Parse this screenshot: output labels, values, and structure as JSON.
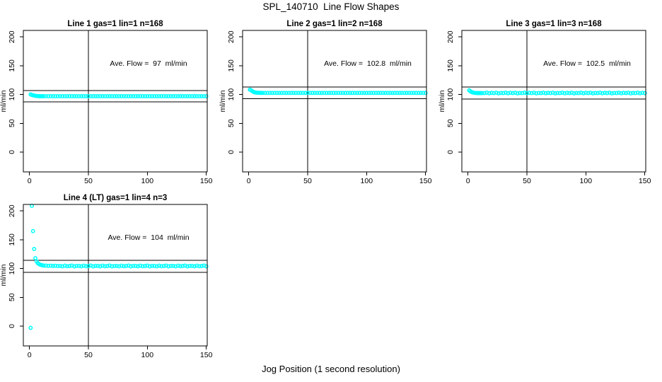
{
  "figure": {
    "title": "SPL_140710  Line Flow Shapes",
    "xlabel": "Jog Position (1 second resolution)",
    "background": "#ffffff",
    "axis_color": "#000000",
    "marker_color": "#00ffff"
  },
  "chart_data": [
    {
      "type": "scatter",
      "title": "Line 1 gas=1 lin=1 n=168",
      "ylabel": "ml/min",
      "annotation": "Ave. Flow =  97  ml/min",
      "annotation_xy": [
        101,
        150
      ],
      "ave_flow_ml_min": 97,
      "xlim": [
        -5.2,
        150.8
      ],
      "ylim": [
        -34.4,
        211.3
      ],
      "xticks": [
        0,
        50,
        100,
        150
      ],
      "yticks": [
        0,
        50,
        100,
        150,
        200
      ],
      "ref_lines_h": [
        106.7,
        87.3
      ],
      "ref_line_v": 50,
      "points": [
        [
          1,
          100.3
        ],
        [
          2,
          99.3
        ],
        [
          3,
          98.6
        ],
        [
          4,
          98.1
        ],
        [
          5,
          97.7
        ],
        [
          6,
          97.5
        ],
        [
          7,
          97.3
        ],
        [
          8,
          97.2
        ],
        [
          9,
          97.1
        ],
        [
          10,
          97.1
        ],
        [
          11,
          97.0
        ],
        [
          12,
          97.0
        ]
      ],
      "band": {
        "x_from": 14,
        "x_to": 150,
        "x_step": 2,
        "y_const": 97
      }
    },
    {
      "type": "scatter",
      "title": "Line 2 gas=1 lin=2 n=168",
      "ylabel": "ml/min",
      "annotation": "Ave. Flow =  102.8  ml/min",
      "annotation_xy": [
        101,
        150
      ],
      "ave_flow_ml_min": 102.8,
      "xlim": [
        -5.2,
        150.8
      ],
      "ylim": [
        -34.4,
        211.3
      ],
      "xticks": [
        0,
        50,
        100,
        150
      ],
      "yticks": [
        0,
        50,
        100,
        150,
        200
      ],
      "ref_lines_h": [
        113.1,
        92.5
      ],
      "ref_line_v": 50,
      "points": [
        [
          1,
          108.3
        ],
        [
          2,
          107.6
        ],
        [
          3,
          105.9
        ],
        [
          4,
          104.6
        ],
        [
          5,
          103.8
        ],
        [
          6,
          103.4
        ],
        [
          7,
          103.1
        ],
        [
          8,
          103.0
        ],
        [
          9,
          102.9
        ],
        [
          10,
          102.9
        ],
        [
          11,
          102.8
        ],
        [
          12,
          102.8
        ]
      ],
      "band": {
        "x_from": 14,
        "x_to": 150,
        "x_step": 2,
        "y_const": 102.8
      }
    },
    {
      "type": "scatter",
      "title": "Line 3 gas=1 lin=3 n=168",
      "ylabel": "ml/min",
      "annotation": "Ave. Flow =  102.5  ml/min",
      "annotation_xy": [
        101,
        150
      ],
      "ave_flow_ml_min": 102.5,
      "xlim": [
        -5.2,
        150.8
      ],
      "ylim": [
        -34.4,
        211.3
      ],
      "xticks": [
        0,
        50,
        100,
        150
      ],
      "yticks": [
        0,
        50,
        100,
        150,
        200
      ],
      "ref_lines_h": [
        112.8,
        92.3
      ],
      "ref_line_v": 50,
      "points": [
        [
          1,
          107.2
        ],
        [
          2,
          105.6
        ],
        [
          3,
          104.4
        ],
        [
          4,
          103.6
        ],
        [
          5,
          103.1
        ],
        [
          6,
          102.8
        ],
        [
          7,
          102.7
        ],
        [
          8,
          102.6
        ],
        [
          9,
          102.5
        ],
        [
          10,
          102.5
        ],
        [
          11,
          102.5
        ],
        [
          12,
          102.5
        ]
      ],
      "band": {
        "x_from": 14,
        "x_to": 150,
        "x_step": 2,
        "y_values": [
          102.5,
          103.2,
          102.2,
          102.9,
          102.4,
          103.1,
          102.1,
          102.7,
          102.5,
          103.2,
          102.2,
          102.9,
          102.4,
          103.1,
          102.1,
          102.7,
          102.5,
          103.2,
          102.2,
          102.9,
          102.4,
          103.1,
          102.1,
          102.7,
          102.5,
          103.2,
          102.2,
          102.9,
          102.4,
          103.1,
          102.1,
          102.7,
          102.5,
          103.2,
          102.2,
          102.9,
          102.4,
          103.1,
          102.1,
          102.7,
          102.5,
          103.2,
          102.2,
          102.9,
          102.4,
          103.1,
          102.1,
          102.7,
          102.5,
          103.2,
          102.2,
          102.9,
          102.4,
          103.1,
          102.1,
          102.7,
          102.5,
          103.2,
          102.2,
          102.9,
          102.4,
          103.1,
          102.1,
          102.7,
          102.5,
          103.2,
          102.2,
          102.9,
          102.4
        ]
      }
    },
    {
      "type": "scatter",
      "title": "Line 4 (LT) gas=1 lin=4 n=3",
      "ylabel": "ml/min",
      "annotation": "Ave. Flow =  104  ml/min",
      "annotation_xy": [
        101,
        150
      ],
      "ave_flow_ml_min": 104,
      "xlim": [
        -5.2,
        150.8
      ],
      "ylim": [
        -34.4,
        211.3
      ],
      "xticks": [
        0,
        50,
        100,
        150
      ],
      "yticks": [
        0,
        50,
        100,
        150,
        200
      ],
      "ref_lines_h": [
        114.4,
        93.6
      ],
      "ref_line_v": 50,
      "points": [
        [
          1,
          -3
        ],
        [
          2,
          209
        ],
        [
          3,
          165
        ],
        [
          4,
          134
        ],
        [
          5,
          118
        ],
        [
          6,
          112.5
        ],
        [
          7,
          109.5
        ],
        [
          8,
          107.8
        ],
        [
          9,
          106.8
        ],
        [
          10,
          106.1
        ],
        [
          11,
          105.6
        ],
        [
          12,
          105.2
        ]
      ],
      "band": {
        "x_from": 14,
        "x_to": 150,
        "x_step": 2,
        "y_values": [
          105.0,
          104.7,
          104.9,
          104.4,
          104.8,
          104.3,
          104.6,
          103.9,
          104.9,
          104.1,
          104.4,
          105.1,
          103.8,
          104.5,
          104.6,
          103.9,
          104.9,
          104.1,
          104.4,
          105.1,
          103.8,
          104.5,
          104.6,
          103.9,
          104.9,
          104.1,
          104.4,
          105.1,
          103.8,
          104.5,
          104.6,
          103.9,
          104.9,
          104.1,
          104.4,
          105.1,
          103.8,
          104.5,
          104.6,
          103.9,
          104.9,
          104.1,
          104.4,
          105.1,
          103.8,
          104.5,
          104.6,
          103.9,
          104.9,
          104.1,
          104.4,
          105.1,
          103.8,
          104.5,
          104.6,
          103.9,
          104.9,
          104.1,
          104.4,
          105.1,
          103.8,
          104.5,
          104.6,
          103.9,
          104.9,
          104.1,
          104.4,
          105.1,
          103.8
        ]
      }
    }
  ]
}
